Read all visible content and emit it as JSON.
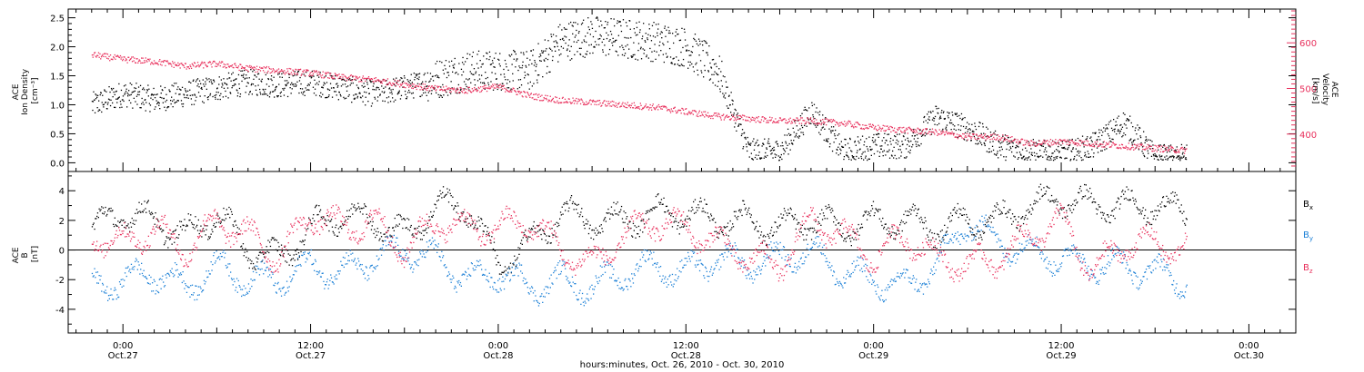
{
  "chart_data": [
    {
      "type": "scatter",
      "panel": "top",
      "ylabel_lines": [
        "ACE",
        "Ion Density",
        "[cm⁻³]"
      ],
      "ylabel_right_lines": [
        "ACE",
        "Velocity",
        "[km/s]"
      ],
      "ylim": [
        -0.15,
        2.65
      ],
      "yticks": [
        "0.0",
        "0.5",
        "1.0",
        "1.5",
        "2.0",
        "2.5"
      ],
      "ylim_right": [
        318,
        674
      ],
      "yticks_right": [
        "400",
        "500",
        "600"
      ],
      "series": [
        {
          "color": "#000000",
          "axis": "left",
          "x_hours": [
            0,
            2,
            4,
            6,
            8,
            10,
            12,
            14,
            16,
            18,
            20,
            22,
            24,
            26,
            28,
            30,
            32,
            34,
            36,
            38,
            40,
            42,
            44,
            46,
            48,
            50,
            52,
            54,
            56,
            58,
            60,
            62,
            64,
            66,
            68,
            70
          ],
          "values": [
            1.0,
            1.2,
            1.1,
            1.2,
            1.3,
            1.4,
            1.35,
            1.4,
            1.3,
            1.2,
            1.3,
            1.45,
            1.6,
            1.6,
            1.6,
            2.1,
            2.2,
            2.15,
            2.1,
            2.0,
            1.6,
            0.2,
            0.2,
            0.9,
            0.2,
            0.3,
            0.3,
            0.8,
            0.6,
            0.3,
            0.2,
            0.15,
            0.3,
            0.7,
            0.1,
            0.1
          ]
        },
        {
          "color": "#e8305c",
          "axis": "right",
          "x_hours": [
            0,
            2,
            4,
            6,
            8,
            10,
            12,
            14,
            16,
            18,
            20,
            22,
            24,
            26,
            28,
            30,
            32,
            34,
            36,
            38,
            40,
            42,
            44,
            46,
            48,
            50,
            52,
            54,
            56,
            58,
            60,
            62,
            64,
            66,
            68,
            70
          ],
          "values": [
            575,
            565,
            560,
            550,
            555,
            545,
            540,
            535,
            525,
            520,
            510,
            500,
            497,
            505,
            485,
            475,
            470,
            465,
            460,
            450,
            440,
            435,
            430,
            430,
            425,
            415,
            410,
            405,
            395,
            395,
            380,
            385,
            380,
            375,
            370,
            365
          ]
        }
      ]
    },
    {
      "type": "scatter",
      "panel": "bottom",
      "ylabel_lines": [
        "ACE",
        "B",
        "[nT]"
      ],
      "ylim": [
        -5.6,
        5.3
      ],
      "yticks": [
        "-4",
        "-2",
        "0",
        "2",
        "4"
      ],
      "legend": [
        "Bₓ",
        "Bᵧ",
        "B_z"
      ],
      "legend_display": [
        {
          "main": "B",
          "sub": "x"
        },
        {
          "main": "B",
          "sub": "y"
        },
        {
          "main": "B",
          "sub": "z"
        }
      ],
      "series": [
        {
          "name": "Bx",
          "color": "#000000",
          "x_hours": [
            0,
            2,
            4,
            6,
            8,
            10,
            12,
            14,
            16,
            18,
            20,
            22,
            24,
            26,
            28,
            30,
            32,
            34,
            36,
            38,
            40,
            42,
            44,
            46,
            48,
            50,
            52,
            54,
            56,
            58,
            60,
            62,
            64,
            66,
            68,
            70
          ],
          "values": [
            1.5,
            2.5,
            2.0,
            1.0,
            2.5,
            0.0,
            -0.5,
            1.5,
            2.5,
            2.0,
            1.0,
            3.0,
            3.0,
            -1.0,
            0.5,
            2.5,
            2.0,
            2.0,
            2.5,
            2.5,
            2.0,
            2.0,
            1.5,
            2.0,
            1.5,
            2.0,
            2.0,
            1.5,
            2.0,
            2.0,
            3.0,
            3.5,
            3.0,
            3.0,
            3.0,
            2.5
          ]
        },
        {
          "name": "By",
          "color": "#1a7fd6",
          "x_hours": [
            0,
            2,
            4,
            6,
            8,
            10,
            12,
            14,
            16,
            18,
            20,
            22,
            24,
            26,
            28,
            30,
            32,
            34,
            36,
            38,
            40,
            42,
            44,
            46,
            48,
            50,
            52,
            54,
            56,
            58,
            60,
            62,
            64,
            66,
            68,
            70
          ],
          "values": [
            -2.5,
            -2.0,
            -1.5,
            -2.5,
            -1.0,
            -2.0,
            -2.0,
            -1.0,
            -1.5,
            -0.5,
            0.0,
            -0.5,
            -2.0,
            -1.5,
            -2.5,
            -2.0,
            -2.5,
            -1.5,
            -1.0,
            -1.5,
            -0.5,
            -1.0,
            -0.5,
            0.0,
            -1.5,
            -2.0,
            -2.5,
            -1.0,
            2.0,
            0.5,
            0.0,
            -0.5,
            -1.0,
            -1.0,
            -1.5,
            -2.0
          ]
        },
        {
          "name": "Bz",
          "color": "#e8305c",
          "x_hours": [
            0,
            2,
            4,
            6,
            8,
            10,
            12,
            14,
            16,
            18,
            20,
            22,
            24,
            26,
            28,
            30,
            32,
            34,
            36,
            38,
            40,
            42,
            44,
            46,
            48,
            50,
            52,
            54,
            56,
            58,
            60,
            62,
            64,
            66,
            68,
            70
          ],
          "values": [
            1.0,
            0.5,
            1.5,
            0.0,
            2.0,
            1.0,
            -0.5,
            2.5,
            1.5,
            2.0,
            0.0,
            2.0,
            1.5,
            1.5,
            2.0,
            0.0,
            -1.0,
            1.0,
            2.0,
            1.5,
            0.5,
            -0.5,
            -1.0,
            2.0,
            1.0,
            -0.5,
            1.0,
            -0.5,
            -1.0,
            -0.5,
            1.0,
            2.0,
            -1.5,
            0.5,
            0.5,
            0.0
          ]
        }
      ]
    }
  ],
  "xaxis": {
    "range_hours": [
      -1.5,
      77.0
    ],
    "ticks": [
      {
        "hour": 2,
        "time": "0:00",
        "day": "Oct.27"
      },
      {
        "hour": 14,
        "time": "12:00",
        "day": "Oct.27"
      },
      {
        "hour": 26,
        "time": "0:00",
        "day": "Oct.28"
      },
      {
        "hour": 38,
        "time": "12:00",
        "day": "Oct.28"
      },
      {
        "hour": 50,
        "time": "0:00",
        "day": "Oct.29"
      },
      {
        "hour": 62,
        "time": "12:00",
        "day": "Oct.29"
      },
      {
        "hour": 74,
        "time": "0:00",
        "day": "Oct.30"
      }
    ],
    "title": "hours:minutes, Oct. 26, 2010 - Oct. 30, 2010"
  }
}
